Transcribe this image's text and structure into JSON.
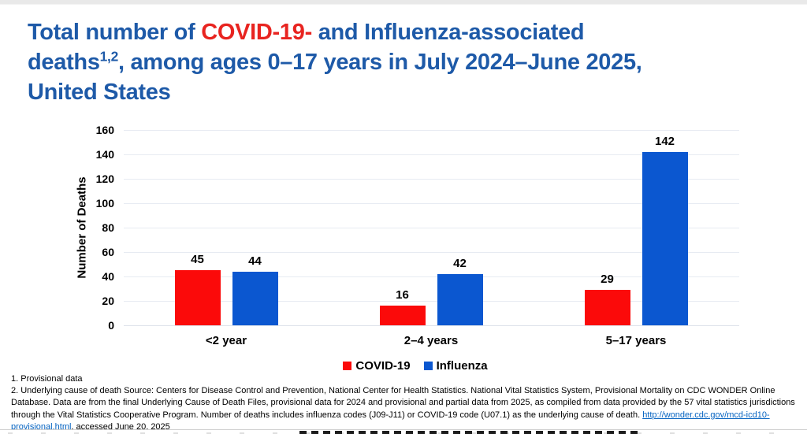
{
  "title": {
    "line1": {
      "pre": "Total number of ",
      "highlight": "COVID-19-",
      "post": " and Influenza-associated"
    },
    "line2": {
      "word": "deaths",
      "superscript": "1,2",
      "rest": ", among ages 0–17 years in July 2024–June 2025,"
    },
    "line3": "United States",
    "blue": "#1e5aa8",
    "red": "#e82420"
  },
  "chart_data": {
    "type": "bar",
    "title": "Total number of COVID-19- and Influenza-associated deaths, among ages 0–17 years in July 2024–June 2025, United States",
    "xlabel": "",
    "ylabel": "Number of Deaths",
    "ylim": [
      0,
      160
    ],
    "yticks": [
      0,
      20,
      40,
      60,
      80,
      100,
      120,
      140,
      160
    ],
    "categories": [
      "<2 year",
      "2–4 years",
      "5–17 years"
    ],
    "series": [
      {
        "name": "COVID-19",
        "color": "#fb0a0a",
        "values": [
          45,
          16,
          29
        ]
      },
      {
        "name": "Influenza",
        "color": "#0b57d0",
        "values": [
          44,
          42,
          142
        ]
      }
    ],
    "grid": "horizontal-major",
    "gridline_color": "#e7ebf2",
    "legend_position": "bottom",
    "bar_value_labels": [
      45,
      44,
      16,
      42,
      29,
      142
    ]
  },
  "footnotes": {
    "line1": "1. Provisional data",
    "line2_before_link": "2. Underlying cause of death Source: Centers for Disease Control and Prevention, National Center for Health Statistics. National Vital Statistics System, Provisional Mortality on CDC WONDER Online Database. Data are from the final Underlying Cause of Death Files, provisional data for 2024 and provisional and partial data from 2025, as compiled from data provided by the 57 vital statistics jurisdictions through the Vital Statistics Cooperative Program. Number of deaths includes influenza codes (J09-J11) or COVID-19 code (U07.1) as the underlying cause of death. ",
    "link_text": "http://wonder.cdc.gov/mcd-icd10-provisional.html",
    "line2_after_link": ", accessed June 20, 2025",
    "link_color": "#0563c1"
  }
}
